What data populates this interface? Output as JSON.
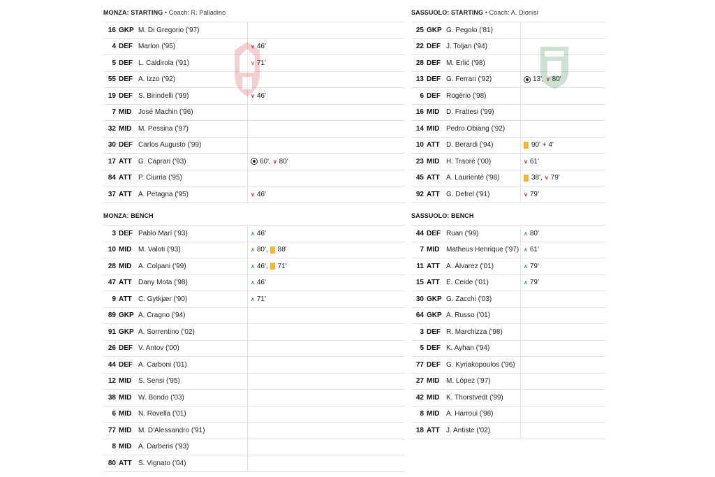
{
  "monza": {
    "starting": {
      "title": "MONZA: STARTING",
      "coach": " • Coach: R. Palladino",
      "players": [
        {
          "num": "16",
          "pos": "GKP",
          "name": "M. Di Gregorio ('97)",
          "events": []
        },
        {
          "num": "4",
          "pos": "DEF",
          "name": "Marlon ('95)",
          "events": [
            {
              "type": "out",
              "text": "46'"
            }
          ]
        },
        {
          "num": "5",
          "pos": "DEF",
          "name": "L. Caldirola ('91)",
          "events": [
            {
              "type": "out",
              "text": "71'"
            }
          ]
        },
        {
          "num": "55",
          "pos": "DEF",
          "name": "A. Izzo ('92)",
          "events": []
        },
        {
          "num": "19",
          "pos": "DEF",
          "name": "S. Birindelli ('99)",
          "events": [
            {
              "type": "out",
              "text": "46'"
            }
          ]
        },
        {
          "num": "7",
          "pos": "MID",
          "name": "José Machin ('96)",
          "events": []
        },
        {
          "num": "32",
          "pos": "MID",
          "name": "M. Pessina ('97)",
          "events": []
        },
        {
          "num": "30",
          "pos": "DEF",
          "name": "Carlos Augusto ('99)",
          "events": []
        },
        {
          "num": "17",
          "pos": "ATT",
          "name": "G. Caprari ('93)",
          "events": [
            {
              "type": "goal",
              "text": "60',"
            },
            {
              "type": "out",
              "text": "80'"
            }
          ]
        },
        {
          "num": "84",
          "pos": "ATT",
          "name": "P. Ciurria ('95)",
          "events": []
        },
        {
          "num": "37",
          "pos": "ATT",
          "name": "A. Petagna ('95)",
          "events": [
            {
              "type": "out",
              "text": "46'"
            }
          ]
        }
      ]
    },
    "bench": {
      "title": "MONZA: BENCH",
      "players": [
        {
          "num": "3",
          "pos": "DEF",
          "name": "Pablo Marí ('93)",
          "events": [
            {
              "type": "in",
              "text": "46'"
            }
          ]
        },
        {
          "num": "10",
          "pos": "MID",
          "name": "M. Valoti ('93)",
          "events": [
            {
              "type": "in",
              "text": "80',"
            },
            {
              "type": "card",
              "text": "88'"
            }
          ]
        },
        {
          "num": "28",
          "pos": "MID",
          "name": "A. Colpani ('99)",
          "events": [
            {
              "type": "in",
              "text": "46',"
            },
            {
              "type": "card",
              "text": "71'"
            }
          ]
        },
        {
          "num": "47",
          "pos": "ATT",
          "name": "Dany Mota ('98)",
          "events": [
            {
              "type": "in",
              "text": "46'"
            }
          ]
        },
        {
          "num": "9",
          "pos": "ATT",
          "name": "C. Gytkjær ('90)",
          "events": [
            {
              "type": "in",
              "text": "71'"
            }
          ]
        },
        {
          "num": "89",
          "pos": "GKP",
          "name": "A. Cragno ('94)",
          "events": []
        },
        {
          "num": "91",
          "pos": "GKP",
          "name": "A. Sorrentino ('02)",
          "events": []
        },
        {
          "num": "26",
          "pos": "DEF",
          "name": "V. Antov ('00)",
          "events": []
        },
        {
          "num": "44",
          "pos": "DEF",
          "name": "A. Carboni ('01)",
          "events": []
        },
        {
          "num": "12",
          "pos": "MID",
          "name": "S. Sensi ('95)",
          "events": []
        },
        {
          "num": "38",
          "pos": "MID",
          "name": "W. Bondo ('03)",
          "events": []
        },
        {
          "num": "6",
          "pos": "MID",
          "name": "N. Rovella ('01)",
          "events": []
        },
        {
          "num": "77",
          "pos": "MID",
          "name": "M. D'Alessandro ('91)",
          "events": []
        },
        {
          "num": "8",
          "pos": "MID",
          "name": "A. Darberis ('93)",
          "events": []
        },
        {
          "num": "80",
          "pos": "ATT",
          "name": "S. Vignato ('04)",
          "events": []
        }
      ]
    }
  },
  "sassuolo": {
    "starting": {
      "title": "SASSUOLO: STARTING",
      "coach": " • Coach: A. Dionisi",
      "players": [
        {
          "num": "25",
          "pos": "GKP",
          "name": "G. Pegolo ('81)",
          "events": []
        },
        {
          "num": "22",
          "pos": "DEF",
          "name": "J. Toljan ('94)",
          "events": []
        },
        {
          "num": "28",
          "pos": "DEF",
          "name": "M. Erlić ('98)",
          "events": []
        },
        {
          "num": "13",
          "pos": "DEF",
          "name": "G. Ferrari ('92)",
          "events": [
            {
              "type": "goal",
              "text": "13',"
            },
            {
              "type": "out",
              "text": "80'"
            }
          ]
        },
        {
          "num": "6",
          "pos": "DEF",
          "name": "Rogério ('98)",
          "events": []
        },
        {
          "num": "16",
          "pos": "MID",
          "name": "D. Frattesi ('99)",
          "events": []
        },
        {
          "num": "14",
          "pos": "MID",
          "name": "Pedro Obiang ('92)",
          "events": []
        },
        {
          "num": "10",
          "pos": "ATT",
          "name": "D. Berardi ('94)",
          "events": [
            {
              "type": "card",
              "text": "90' + 4'"
            }
          ]
        },
        {
          "num": "23",
          "pos": "MID",
          "name": "H. Traoré ('00)",
          "events": [
            {
              "type": "out",
              "text": "61'"
            }
          ]
        },
        {
          "num": "45",
          "pos": "ATT",
          "name": "A. Laurienté ('98)",
          "events": [
            {
              "type": "card",
              "text": "38',"
            },
            {
              "type": "out",
              "text": "79'"
            }
          ]
        },
        {
          "num": "92",
          "pos": "ATT",
          "name": "G. Defrel ('91)",
          "events": [
            {
              "type": "out",
              "text": "79'"
            }
          ]
        }
      ]
    },
    "bench": {
      "title": "SASSUOLO: BENCH",
      "players": [
        {
          "num": "44",
          "pos": "DEF",
          "name": "Ruan ('99)",
          "events": [
            {
              "type": "in",
              "text": "80'"
            }
          ]
        },
        {
          "num": "7",
          "pos": "MID",
          "name": "Matheus Henrique ('97)",
          "events": [
            {
              "type": "in",
              "text": "61'"
            }
          ]
        },
        {
          "num": "11",
          "pos": "ATT",
          "name": "A. Álvarez ('01)",
          "events": [
            {
              "type": "in",
              "text": "79'"
            }
          ]
        },
        {
          "num": "15",
          "pos": "ATT",
          "name": "E. Ceide ('01)",
          "events": [
            {
              "type": "in",
              "text": "79'"
            }
          ]
        },
        {
          "num": "30",
          "pos": "GKP",
          "name": "G. Zacchi ('03)",
          "events": []
        },
        {
          "num": "64",
          "pos": "GKP",
          "name": "A. Russo ('01)",
          "events": []
        },
        {
          "num": "3",
          "pos": "DEF",
          "name": "R. Marchizza ('98)",
          "events": []
        },
        {
          "num": "5",
          "pos": "DEF",
          "name": "K. Ayhan ('94)",
          "events": []
        },
        {
          "num": "77",
          "pos": "DEF",
          "name": "G. Kyriakopoulos ('96)",
          "events": []
        },
        {
          "num": "27",
          "pos": "MID",
          "name": "M. López ('97)",
          "events": []
        },
        {
          "num": "42",
          "pos": "MID",
          "name": "K. Thorstvedt ('99)",
          "events": []
        },
        {
          "num": "8",
          "pos": "MID",
          "name": "A. Harroui ('98)",
          "events": []
        },
        {
          "num": "18",
          "pos": "ATT",
          "name": "J. Antiste ('02)",
          "events": []
        }
      ]
    }
  },
  "icons": {
    "goal": "soccer-ball-icon",
    "out": "substitution-out-icon",
    "in": "substitution-in-icon",
    "card": "yellow-card-icon"
  },
  "colors": {
    "sub_out": "#d62b2b",
    "sub_in": "#2f9d61",
    "yellow_card": "#f5b82e",
    "monza_crest": "#d62b2b",
    "sassuolo_crest": "#1f7a3a"
  }
}
